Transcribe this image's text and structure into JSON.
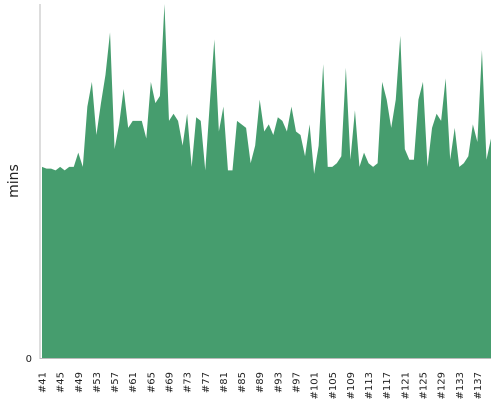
{
  "chart_data": {
    "type": "area",
    "title": "",
    "xlabel": "",
    "ylabel": "mins",
    "color": "#469d6e",
    "y_tick_labels": [
      "0"
    ],
    "x_tick_labels": [
      "#41",
      "#45",
      "#49",
      "#53",
      "#57",
      "#61",
      "#65",
      "#69",
      "#73",
      "#77",
      "#81",
      "#85",
      "#89",
      "#93",
      "#97",
      "#101",
      "#105",
      "#109",
      "#113",
      "#117",
      "#121",
      "#125",
      "#129",
      "#133",
      "#137"
    ],
    "x": [
      41,
      42,
      43,
      44,
      45,
      46,
      47,
      48,
      49,
      50,
      51,
      52,
      53,
      54,
      55,
      56,
      57,
      58,
      59,
      60,
      61,
      62,
      63,
      64,
      65,
      66,
      67,
      68,
      69,
      70,
      71,
      72,
      73,
      74,
      75,
      76,
      77,
      78,
      79,
      80,
      81,
      82,
      83,
      84,
      85,
      86,
      87,
      88,
      89,
      90,
      91,
      92,
      93,
      94,
      95,
      96,
      97,
      98,
      99,
      100,
      101,
      102,
      103,
      104,
      105,
      106,
      107,
      108,
      109,
      110,
      111,
      112,
      113,
      114,
      115,
      116,
      117,
      118,
      119,
      120,
      121,
      122,
      123,
      124,
      125,
      126,
      127,
      128,
      129,
      130,
      131,
      132,
      133,
      134,
      135,
      136,
      137,
      138,
      139,
      140
    ],
    "series": [
      {
        "values": [
          54,
          53.5,
          53.5,
          53,
          54,
          53,
          54,
          54,
          58,
          54,
          71,
          78,
          63,
          72,
          80,
          92,
          59,
          66,
          76,
          65,
          67,
          67,
          67,
          62,
          78,
          72,
          74,
          100,
          67,
          69,
          67,
          60,
          69,
          54,
          68,
          67,
          53,
          72,
          90,
          64,
          71,
          53,
          53,
          67,
          66,
          65,
          55,
          60,
          73,
          64,
          66,
          63,
          68,
          67,
          64,
          71,
          64,
          63,
          57,
          66,
          52,
          60,
          83,
          54,
          54,
          55,
          57,
          82,
          56,
          70,
          54,
          58,
          55,
          54,
          55,
          78,
          73,
          65,
          73,
          91,
          59,
          56,
          56,
          73,
          78,
          54,
          65,
          69,
          67,
          79,
          56,
          65,
          54,
          55,
          57,
          66,
          61,
          87,
          56,
          62
        ]
      }
    ]
  }
}
